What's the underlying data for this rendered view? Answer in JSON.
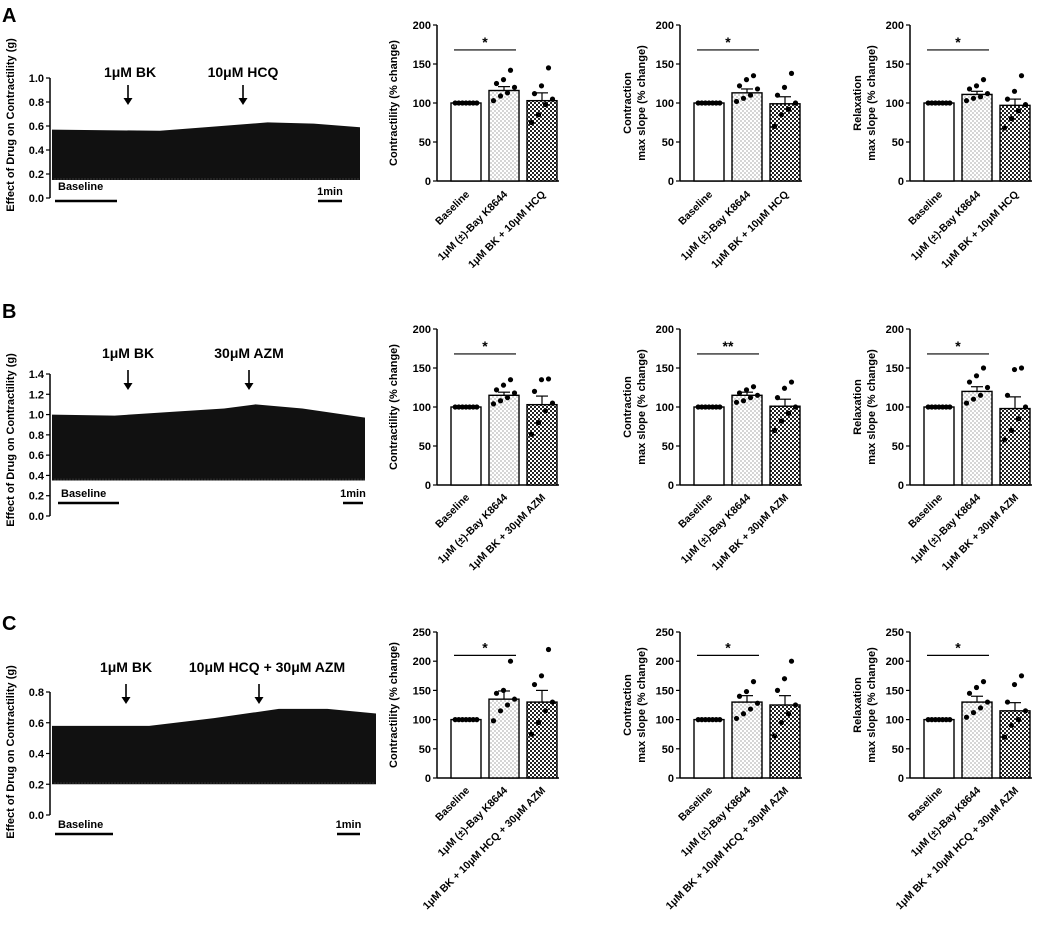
{
  "figure": {
    "panels": [
      {
        "letter": "A",
        "trace": {
          "ylabel": "Effect of Drug on Contractility (g)",
          "yticks": [
            0.0,
            0.2,
            0.4,
            0.6,
            0.8,
            1.0
          ],
          "ylim": [
            0,
            1.0
          ],
          "arrow1": "1μM BK",
          "arrow2": "10μM HCQ",
          "baseline_label": "Baseline",
          "scale_label": "1min",
          "trough": 0.15,
          "envelope": [
            [
              0,
              0.57
            ],
            [
              0.35,
              0.56
            ],
            [
              0.55,
              0.6
            ],
            [
              0.7,
              0.63
            ],
            [
              0.85,
              0.62
            ],
            [
              1,
              0.59
            ]
          ]
        }
      },
      {
        "letter": "B",
        "trace": {
          "ylabel": "Effect of Drug on Contractility (g)",
          "yticks": [
            0.0,
            0.2,
            0.4,
            0.6,
            0.8,
            1.0,
            1.2,
            1.4
          ],
          "ylim": [
            0,
            1.4
          ],
          "arrow1": "1μM BK",
          "arrow2": "30μM AZM",
          "baseline_label": "Baseline",
          "scale_label": "1min",
          "trough": 0.35,
          "envelope": [
            [
              0,
              1.0
            ],
            [
              0.2,
              0.99
            ],
            [
              0.4,
              1.03
            ],
            [
              0.55,
              1.06
            ],
            [
              0.65,
              1.1
            ],
            [
              0.8,
              1.06
            ],
            [
              1,
              0.97
            ]
          ]
        }
      },
      {
        "letter": "C",
        "trace": {
          "ylabel": "Effect of Drug on Contractility (g)",
          "yticks": [
            0.0,
            0.2,
            0.4,
            0.6,
            0.8
          ],
          "ylim": [
            0,
            0.8
          ],
          "arrow1": "1μM BK",
          "arrow2": "10μM HCQ + 30μM AZM",
          "baseline_label": "Baseline",
          "scale_label": "1min",
          "trough": 0.2,
          "envelope": [
            [
              0,
              0.58
            ],
            [
              0.3,
              0.58
            ],
            [
              0.5,
              0.63
            ],
            [
              0.7,
              0.69
            ],
            [
              0.85,
              0.69
            ],
            [
              1,
              0.66
            ]
          ]
        }
      }
    ]
  },
  "chart_data": [
    {
      "type": "bar",
      "panel": "A",
      "ylabel": "Contractility (% change)",
      "ylim": [
        0,
        200
      ],
      "yticks": [
        0,
        50,
        100,
        150,
        200
      ],
      "categories": [
        "Baseline",
        "1μM (±)-Bay K8644",
        "1μM BK + 10μM HCQ"
      ],
      "values": [
        100,
        116,
        103
      ],
      "sem": [
        0,
        5,
        10
      ],
      "points": [
        [
          100,
          100,
          100,
          100,
          100,
          100,
          100
        ],
        [
          103,
          109,
          113,
          120,
          125,
          130,
          142
        ],
        [
          75,
          85,
          98,
          105,
          112,
          122,
          145
        ]
      ],
      "sig": [
        {
          "label": "*",
          "from": 0,
          "to": 1
        }
      ]
    },
    {
      "type": "bar",
      "panel": "A",
      "ylabel": "Contraction max slope (% change)",
      "ylim": [
        0,
        200
      ],
      "yticks": [
        0,
        50,
        100,
        150,
        200
      ],
      "categories": [
        "Baseline",
        "1μM (±)-Bay K8644",
        "1μM BK + 10μM HCQ"
      ],
      "values": [
        100,
        113,
        99
      ],
      "sem": [
        0,
        5,
        9
      ],
      "points": [
        [
          100,
          100,
          100,
          100,
          100,
          100,
          100
        ],
        [
          102,
          106,
          110,
          118,
          122,
          130,
          135
        ],
        [
          70,
          85,
          92,
          100,
          110,
          120,
          138
        ]
      ],
      "sig": [
        {
          "label": "*",
          "from": 0,
          "to": 1
        }
      ]
    },
    {
      "type": "bar",
      "panel": "A",
      "ylabel": "Relaxation max slope (% change)",
      "ylim": [
        0,
        200
      ],
      "yticks": [
        0,
        50,
        100,
        150,
        200
      ],
      "categories": [
        "Baseline",
        "1μM (±)-Bay K8644",
        "1μM BK + 10μM HCQ"
      ],
      "values": [
        100,
        111,
        97
      ],
      "sem": [
        0,
        4,
        8
      ],
      "points": [
        [
          100,
          100,
          100,
          100,
          100,
          100,
          100
        ],
        [
          103,
          106,
          108,
          112,
          118,
          122,
          130
        ],
        [
          68,
          80,
          90,
          98,
          105,
          115,
          135
        ]
      ],
      "sig": [
        {
          "label": "*",
          "from": 0,
          "to": 1
        }
      ]
    },
    {
      "type": "bar",
      "panel": "B",
      "ylabel": "Contractility (% change)",
      "ylim": [
        0,
        200
      ],
      "yticks": [
        0,
        50,
        100,
        150,
        200
      ],
      "categories": [
        "Baseline",
        "1μM (±)-Bay K8644",
        "1μM BK + 30μM AZM"
      ],
      "values": [
        100,
        115,
        103
      ],
      "sem": [
        0,
        4,
        11
      ],
      "points": [
        [
          100,
          100,
          100,
          100,
          100,
          100,
          100
        ],
        [
          104,
          108,
          112,
          118,
          122,
          128,
          135
        ],
        [
          65,
          80,
          95,
          105,
          120,
          135,
          136
        ]
      ],
      "sig": [
        {
          "label": "*",
          "from": 0,
          "to": 1
        }
      ]
    },
    {
      "type": "bar",
      "panel": "B",
      "ylabel": "Contraction max slope (% change)",
      "ylim": [
        0,
        200
      ],
      "yticks": [
        0,
        50,
        100,
        150,
        200
      ],
      "categories": [
        "Baseline",
        "1μM (±)-Bay K8644",
        "1μM BK + 30μM AZM"
      ],
      "values": [
        100,
        115,
        101
      ],
      "sem": [
        0,
        4,
        9
      ],
      "points": [
        [
          100,
          100,
          100,
          100,
          100,
          100,
          100
        ],
        [
          106,
          108,
          112,
          115,
          118,
          122,
          126
        ],
        [
          70,
          82,
          92,
          100,
          112,
          124,
          132
        ]
      ],
      "sig": [
        {
          "label": "**",
          "from": 0,
          "to": 1
        }
      ]
    },
    {
      "type": "bar",
      "panel": "B",
      "ylabel": "Relaxation max slope (% change)",
      "ylim": [
        0,
        200
      ],
      "yticks": [
        0,
        50,
        100,
        150,
        200
      ],
      "categories": [
        "Baseline",
        "1μM (±)-Bay K8644",
        "1μM BK + 30μM AZM"
      ],
      "values": [
        100,
        120,
        98
      ],
      "sem": [
        0,
        6,
        15
      ],
      "points": [
        [
          100,
          100,
          100,
          100,
          100,
          100,
          100
        ],
        [
          105,
          110,
          115,
          125,
          132,
          140,
          150
        ],
        [
          58,
          70,
          85,
          100,
          115,
          148,
          150
        ]
      ],
      "sig": [
        {
          "label": "*",
          "from": 0,
          "to": 1
        }
      ]
    },
    {
      "type": "bar",
      "panel": "C",
      "ylabel": "Contractility (% change)",
      "ylim": [
        0,
        250
      ],
      "yticks": [
        0,
        50,
        100,
        150,
        200,
        250
      ],
      "categories": [
        "Baseline",
        "1μM (±)-Bay K8644",
        "1μM BK + 10μM HCQ + 30μM AZM"
      ],
      "values": [
        100,
        135,
        130
      ],
      "sem": [
        0,
        14,
        20
      ],
      "points": [
        [
          100,
          100,
          100,
          100,
          100,
          100,
          100
        ],
        [
          98,
          115,
          125,
          135,
          145,
          150,
          200
        ],
        [
          75,
          95,
          115,
          130,
          160,
          175,
          220
        ]
      ],
      "sig": [
        {
          "label": "*",
          "from": 0,
          "to": 1
        }
      ]
    },
    {
      "type": "bar",
      "panel": "C",
      "ylabel": "Contraction max slope (% change)",
      "ylim": [
        0,
        250
      ],
      "yticks": [
        0,
        50,
        100,
        150,
        200,
        250
      ],
      "categories": [
        "Baseline",
        "1μM (±)-Bay K8644",
        "1μM BK + 10μM HCQ + 30μM AZM"
      ],
      "values": [
        100,
        130,
        125
      ],
      "sem": [
        0,
        11,
        16
      ],
      "points": [
        [
          100,
          100,
          100,
          100,
          100,
          100,
          100
        ],
        [
          102,
          110,
          118,
          128,
          140,
          148,
          165
        ],
        [
          72,
          95,
          110,
          125,
          150,
          170,
          200
        ]
      ],
      "sig": [
        {
          "label": "*",
          "from": 0,
          "to": 1
        }
      ]
    },
    {
      "type": "bar",
      "panel": "C",
      "ylabel": "Relaxation max slope (% change)",
      "ylim": [
        0,
        250
      ],
      "yticks": [
        0,
        50,
        100,
        150,
        200,
        250
      ],
      "categories": [
        "Baseline",
        "1μM (±)-Bay K8644",
        "1μM BK + 10μM HCQ + 30μM AZM"
      ],
      "values": [
        100,
        130,
        115
      ],
      "sem": [
        0,
        10,
        14
      ],
      "points": [
        [
          100,
          100,
          100,
          100,
          100,
          100,
          100
        ],
        [
          104,
          112,
          120,
          130,
          145,
          155,
          165
        ],
        [
          70,
          90,
          100,
          115,
          130,
          160,
          175
        ]
      ],
      "sig": [
        {
          "label": "*",
          "from": 0,
          "to": 1
        }
      ]
    }
  ]
}
